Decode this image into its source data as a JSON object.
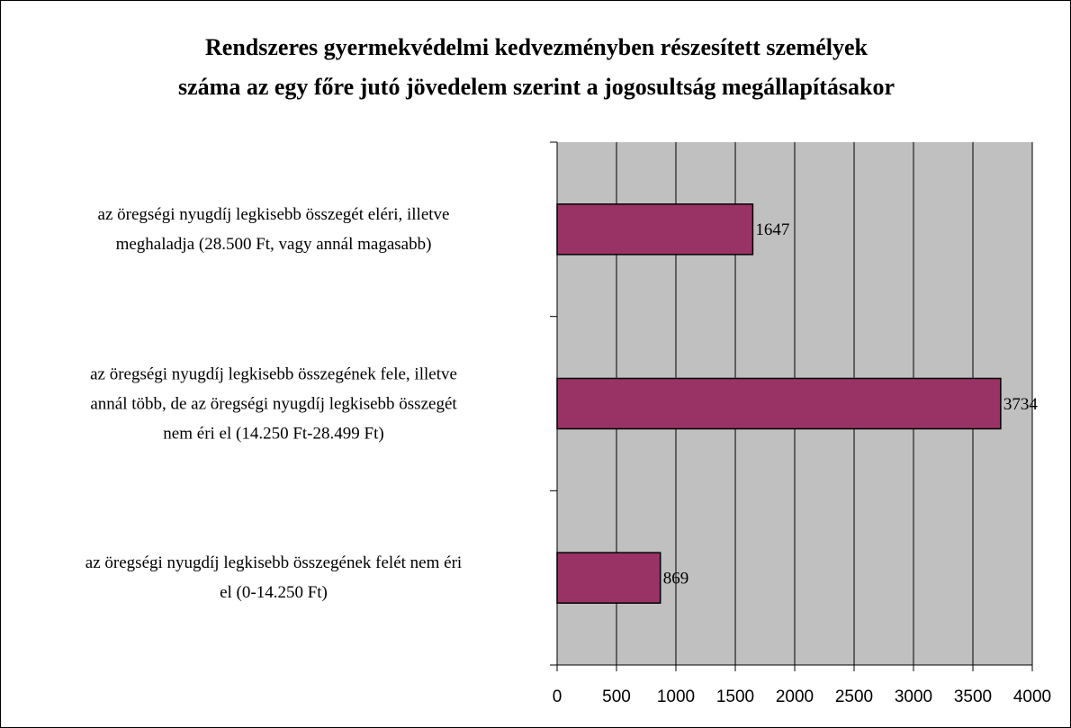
{
  "chart_data": {
    "type": "bar",
    "orientation": "horizontal",
    "title": "Rendszeres gyermekvédelmi kedvezményben részesített személyek\nszáma az egy főre jutó jövedelem szerint a jogosultság megállapításakor",
    "categories": [
      "az öregségi nyugdíj legkisebb összegét eléri, illetve\nmeghaladja (28.500 Ft, vagy annál magasabb)",
      "az öregségi nyugdíj legkisebb összegének fele, illetve\nannál több, de az öregségi nyugdíj legkisebb összegét\nnem éri el (14.250 Ft-28.499 Ft)",
      "az öregségi nyugdíj legkisebb összegének felét nem éri\nel (0-14.250 Ft)"
    ],
    "values": [
      1647,
      3734,
      869
    ],
    "color": "#993366",
    "xlim": [
      0,
      4000
    ],
    "xticks": [
      0,
      500,
      1000,
      1500,
      2000,
      2500,
      3000,
      3500,
      4000
    ],
    "grid": true
  }
}
